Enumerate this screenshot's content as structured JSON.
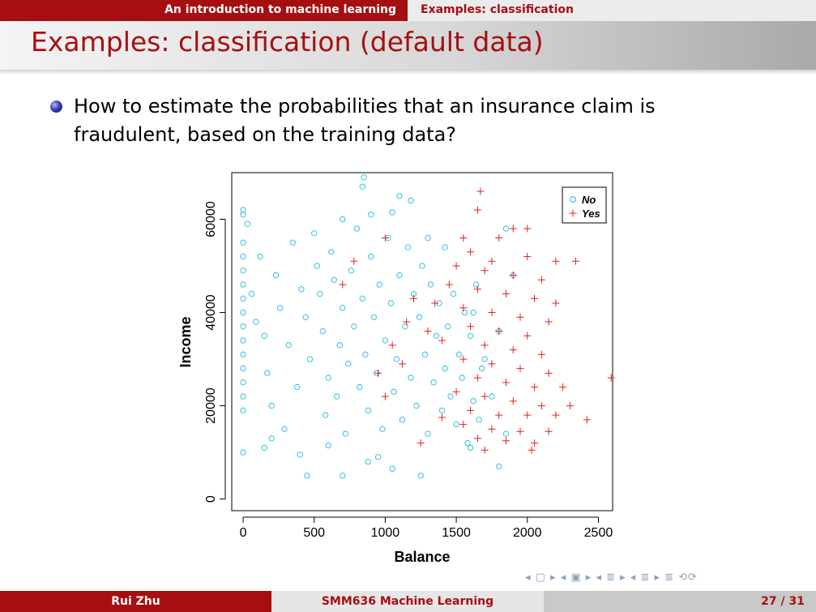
{
  "header": {
    "section": "An introduction to machine learning",
    "subsection": "Examples: classification"
  },
  "slide": {
    "title": "Examples: classification (default data)",
    "bullet": "How to estimate the probabilities that an insurance claim is fraudulent, based on the training data?"
  },
  "nav_symbols": "◂ ▢ ▸  ◂ ▣ ▸  ◂ ≣ ▸  ◂ ≣ ▸   ≣   ⟲⟳",
  "footer": {
    "author": "Rui Zhu",
    "course": "SMM636 Machine Learning",
    "page": "27 / 31"
  },
  "colors": {
    "accent": "#a50f12",
    "no": "#22b8d8",
    "yes": "#e02020"
  },
  "chart_data": {
    "type": "scatter",
    "xlabel": "Balance",
    "ylabel": "Income",
    "xlim": [
      -80,
      2600
    ],
    "ylim": [
      -2500,
      70000
    ],
    "xticks": [
      0,
      500,
      1000,
      1500,
      2000,
      2500
    ],
    "yticks": [
      0,
      20000,
      40000,
      60000
    ],
    "legend": {
      "position": "top-right",
      "entries": [
        "No",
        "Yes"
      ]
    },
    "series": [
      {
        "name": "No",
        "marker": "circle",
        "color": "#22b8d8",
        "points": [
          [
            0,
            62000
          ],
          [
            0,
            61000
          ],
          [
            0,
            55000
          ],
          [
            0,
            52000
          ],
          [
            0,
            49000
          ],
          [
            0,
            46000
          ],
          [
            0,
            43000
          ],
          [
            0,
            40000
          ],
          [
            0,
            37000
          ],
          [
            0,
            34000
          ],
          [
            0,
            31000
          ],
          [
            0,
            28000
          ],
          [
            0,
            25000
          ],
          [
            0,
            22000
          ],
          [
            0,
            19000
          ],
          [
            0,
            10000
          ],
          [
            30,
            59000
          ],
          [
            60,
            44000
          ],
          [
            90,
            38000
          ],
          [
            120,
            52000
          ],
          [
            150,
            35000
          ],
          [
            170,
            27000
          ],
          [
            200,
            20000
          ],
          [
            230,
            48000
          ],
          [
            260,
            41000
          ],
          [
            290,
            15000
          ],
          [
            320,
            33000
          ],
          [
            350,
            55000
          ],
          [
            380,
            24000
          ],
          [
            410,
            45000
          ],
          [
            440,
            39000
          ],
          [
            470,
            30000
          ],
          [
            500,
            57000
          ],
          [
            520,
            50000
          ],
          [
            540,
            44000
          ],
          [
            560,
            36000
          ],
          [
            580,
            18000
          ],
          [
            600,
            26000
          ],
          [
            620,
            53000
          ],
          [
            640,
            47000
          ],
          [
            660,
            22000
          ],
          [
            680,
            33000
          ],
          [
            700,
            41000
          ],
          [
            720,
            14000
          ],
          [
            740,
            29000
          ],
          [
            760,
            49000
          ],
          [
            780,
            37000
          ],
          [
            800,
            58000
          ],
          [
            820,
            24000
          ],
          [
            840,
            43000
          ],
          [
            860,
            31000
          ],
          [
            880,
            19000
          ],
          [
            900,
            52000
          ],
          [
            920,
            39000
          ],
          [
            940,
            27000
          ],
          [
            960,
            46000
          ],
          [
            980,
            15000
          ],
          [
            1000,
            34000
          ],
          [
            1020,
            56000
          ],
          [
            1040,
            42000
          ],
          [
            1060,
            23000
          ],
          [
            1080,
            30000
          ],
          [
            1100,
            48000
          ],
          [
            1120,
            17000
          ],
          [
            1140,
            37000
          ],
          [
            1160,
            54000
          ],
          [
            1180,
            26000
          ],
          [
            1200,
            44000
          ],
          [
            1220,
            20000
          ],
          [
            1240,
            39000
          ],
          [
            1260,
            50000
          ],
          [
            1280,
            31000
          ],
          [
            1300,
            14000
          ],
          [
            1320,
            46000
          ],
          [
            1340,
            25000
          ],
          [
            1360,
            35000
          ],
          [
            1380,
            42000
          ],
          [
            1400,
            19000
          ],
          [
            1420,
            28000
          ],
          [
            1440,
            37000
          ],
          [
            1460,
            22000
          ],
          [
            1480,
            44000
          ],
          [
            1500,
            16000
          ],
          [
            1520,
            31000
          ],
          [
            1540,
            26000
          ],
          [
            1560,
            40000
          ],
          [
            1580,
            12000
          ],
          [
            1600,
            35000
          ],
          [
            1620,
            21000
          ],
          [
            1640,
            46000
          ],
          [
            1660,
            17000
          ],
          [
            1700,
            30000
          ],
          [
            1750,
            22000
          ],
          [
            1800,
            36000
          ],
          [
            1850,
            14000
          ],
          [
            1900,
            48000
          ],
          [
            850,
            69000
          ],
          [
            840,
            67000
          ],
          [
            1100,
            65000
          ],
          [
            1180,
            64000
          ],
          [
            450,
            5000
          ],
          [
            700,
            5000
          ],
          [
            1250,
            5000
          ],
          [
            1050,
            6500
          ],
          [
            950,
            9000
          ],
          [
            880,
            8000
          ],
          [
            1800,
            7000
          ],
          [
            700,
            60000
          ],
          [
            900,
            61000
          ],
          [
            1050,
            61500
          ],
          [
            1300,
            56000
          ],
          [
            1420,
            54000
          ],
          [
            150,
            11000
          ],
          [
            200,
            13000
          ],
          [
            600,
            11500
          ],
          [
            400,
            9500
          ],
          [
            1600,
            11000
          ],
          [
            1680,
            28000
          ],
          [
            1620,
            40000
          ],
          [
            1850,
            58000
          ]
        ]
      },
      {
        "name": "Yes",
        "marker": "plus",
        "color": "#e02020",
        "points": [
          [
            1670,
            66000
          ],
          [
            1650,
            62000
          ],
          [
            1900,
            58000
          ],
          [
            2000,
            58000
          ],
          [
            1550,
            56000
          ],
          [
            1800,
            56000
          ],
          [
            1600,
            53000
          ],
          [
            1750,
            51000
          ],
          [
            2000,
            52000
          ],
          [
            2200,
            51000
          ],
          [
            2340,
            51000
          ],
          [
            1500,
            50000
          ],
          [
            1700,
            49000
          ],
          [
            1900,
            48000
          ],
          [
            2100,
            47000
          ],
          [
            1450,
            46000
          ],
          [
            1650,
            45000
          ],
          [
            1850,
            44000
          ],
          [
            2050,
            43000
          ],
          [
            2200,
            42000
          ],
          [
            1350,
            42000
          ],
          [
            1550,
            41000
          ],
          [
            1750,
            40000
          ],
          [
            1950,
            39000
          ],
          [
            2150,
            38000
          ],
          [
            1600,
            37000
          ],
          [
            1800,
            36000
          ],
          [
            2000,
            35000
          ],
          [
            1400,
            34000
          ],
          [
            1700,
            33000
          ],
          [
            1900,
            32000
          ],
          [
            2100,
            31000
          ],
          [
            1550,
            30000
          ],
          [
            1750,
            29000
          ],
          [
            1950,
            28000
          ],
          [
            2150,
            27000
          ],
          [
            1650,
            26000
          ],
          [
            1850,
            25000
          ],
          [
            2050,
            24000
          ],
          [
            2250,
            24000
          ],
          [
            2590,
            26000
          ],
          [
            1500,
            23000
          ],
          [
            1700,
            22000
          ],
          [
            1900,
            21000
          ],
          [
            2100,
            20000
          ],
          [
            2300,
            20000
          ],
          [
            1600,
            19000
          ],
          [
            1800,
            18000
          ],
          [
            2000,
            18000
          ],
          [
            2200,
            18000
          ],
          [
            2420,
            17000
          ],
          [
            1400,
            17500
          ],
          [
            1550,
            16000
          ],
          [
            1750,
            15000
          ],
          [
            1950,
            14500
          ],
          [
            2150,
            14500
          ],
          [
            1650,
            13000
          ],
          [
            1850,
            12500
          ],
          [
            2050,
            12000
          ],
          [
            1250,
            12000
          ],
          [
            1700,
            10500
          ],
          [
            2030,
            10500
          ],
          [
            1000,
            22000
          ],
          [
            1120,
            29000
          ],
          [
            950,
            27000
          ],
          [
            1200,
            43000
          ],
          [
            1050,
            33000
          ],
          [
            700,
            46000
          ],
          [
            780,
            51000
          ],
          [
            1000,
            56000
          ],
          [
            1300,
            36000
          ],
          [
            1150,
            38000
          ]
        ]
      }
    ]
  }
}
